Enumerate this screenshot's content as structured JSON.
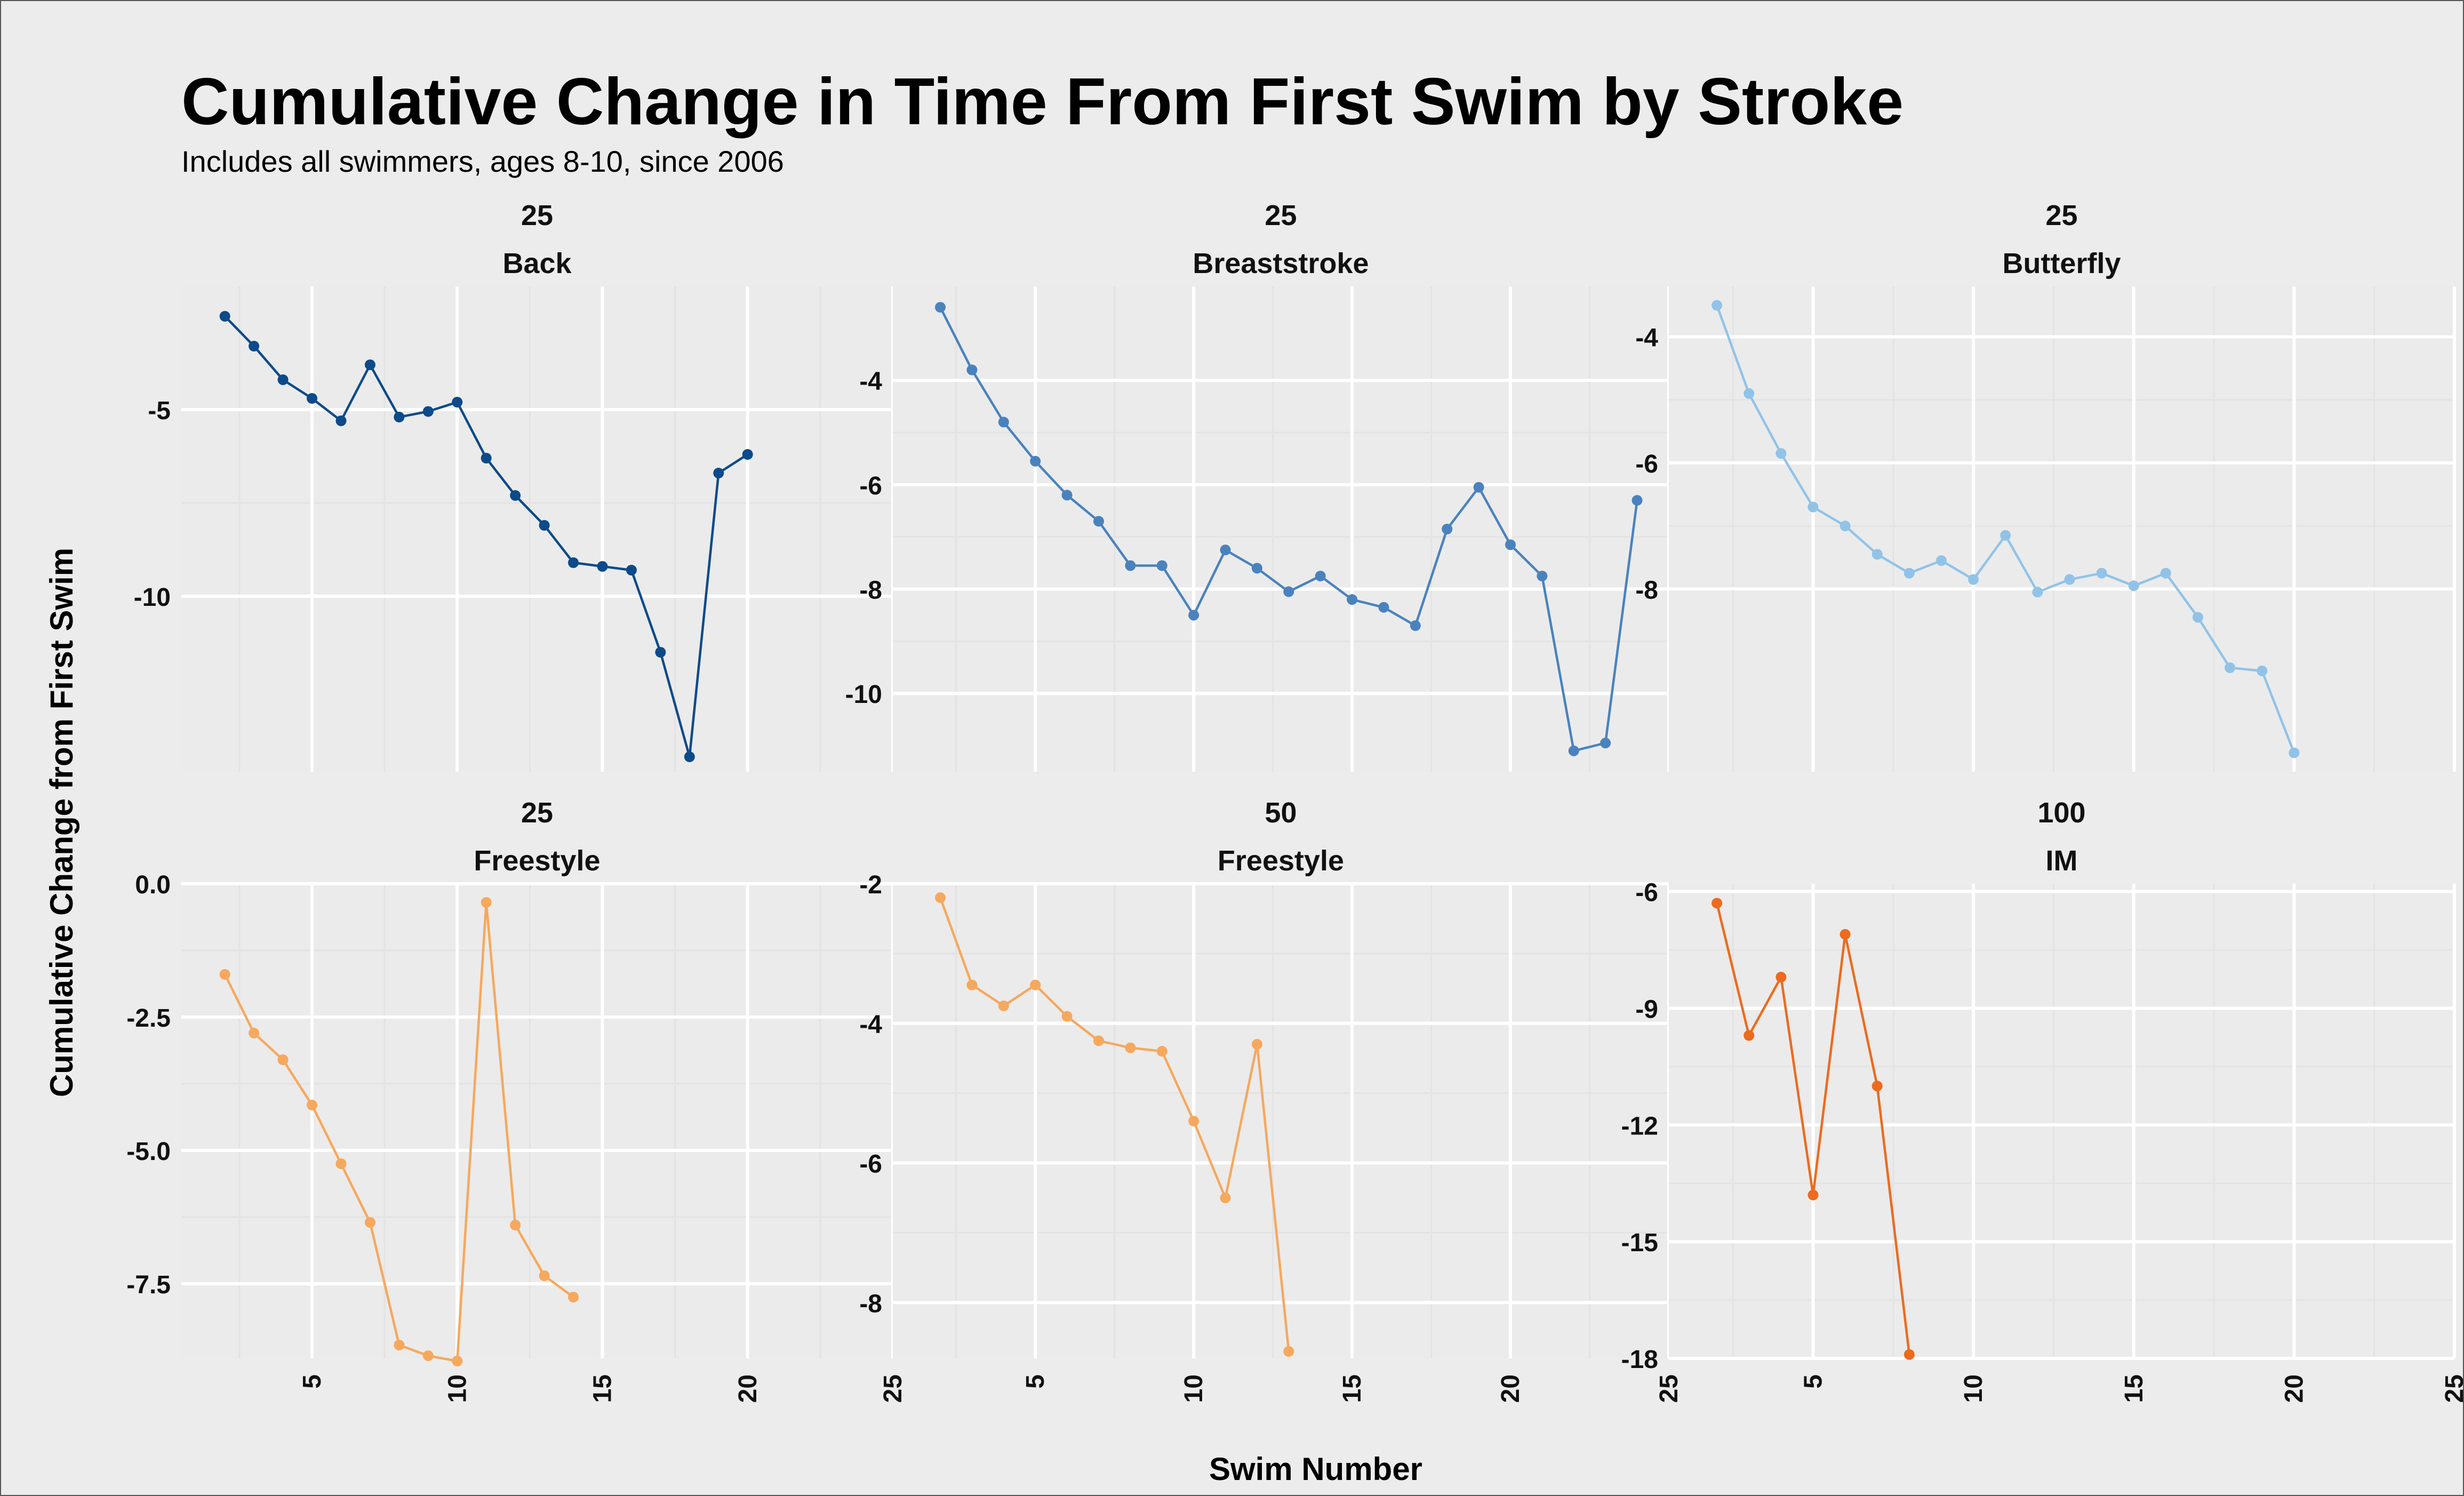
{
  "chart_data": {
    "type": "line",
    "title": "Cumulative Change in Time From First Swim by Stroke",
    "subtitle": "Includes all swimmers, ages 8-10, since 2006",
    "xlabel": "Swim Number",
    "ylabel": "Cumulative Change from First Swim",
    "grid": true,
    "legend": "none",
    "panels": [
      {
        "distance": "25",
        "stroke": "Back",
        "color": "#0d4a8a",
        "xlim": [
          1,
          25
        ],
        "xticks": [
          5,
          10,
          15,
          20,
          25
        ],
        "ylim": [
          -14.7,
          -1.7
        ],
        "yticks": [
          -5,
          -10
        ],
        "x": [
          2,
          3,
          4,
          5,
          6,
          7,
          8,
          9,
          10,
          11,
          12,
          13,
          14,
          15,
          16,
          17,
          18,
          19,
          20
        ],
        "y": [
          -2.5,
          -3.3,
          -4.2,
          -4.7,
          -5.3,
          -3.8,
          -5.2,
          -5.05,
          -4.8,
          -6.3,
          -7.3,
          -8.1,
          -9.1,
          -9.2,
          -9.3,
          -11.5,
          -14.3,
          -6.7,
          -6.2
        ]
      },
      {
        "distance": "25",
        "stroke": "Breaststroke",
        "color": "#4a82be",
        "xlim": [
          1,
          25
        ],
        "xticks": [
          5,
          10,
          15,
          20,
          25
        ],
        "ylim": [
          -11.5,
          -2.2
        ],
        "yticks": [
          -4,
          -6,
          -8,
          -10
        ],
        "x": [
          2,
          3,
          4,
          5,
          6,
          7,
          8,
          9,
          10,
          11,
          12,
          13,
          14,
          15,
          16,
          17,
          18,
          19,
          20,
          21,
          22,
          23,
          24
        ],
        "y": [
          -2.6,
          -3.8,
          -4.8,
          -5.55,
          -6.2,
          -6.7,
          -7.55,
          -7.55,
          -8.5,
          -7.25,
          -7.6,
          -8.05,
          -7.75,
          -8.2,
          -8.35,
          -8.7,
          -6.85,
          -6.05,
          -7.15,
          -7.75,
          -11.1,
          -10.95,
          -6.3
        ]
      },
      {
        "distance": "25",
        "stroke": "Butterfly",
        "color": "#91c3e8",
        "xlim": [
          1,
          25
        ],
        "xticks": [
          5,
          10,
          15,
          20,
          25
        ],
        "ylim": [
          -10.9,
          -3.2
        ],
        "yticks": [
          -4,
          -6,
          -8
        ],
        "x": [
          2,
          3,
          4,
          5,
          6,
          7,
          8,
          9,
          10,
          11,
          12,
          13,
          14,
          15,
          16,
          17,
          18,
          19,
          20
        ],
        "y": [
          -3.5,
          -4.9,
          -5.85,
          -6.7,
          -7.0,
          -7.45,
          -7.75,
          -7.55,
          -7.85,
          -7.15,
          -8.05,
          -7.85,
          -7.75,
          -7.95,
          -7.75,
          -8.45,
          -9.25,
          -9.3,
          -10.6
        ]
      },
      {
        "distance": "25",
        "stroke": "Freestyle",
        "color": "#f6a85d",
        "xlim": [
          1,
          25
        ],
        "xticks": [
          5,
          10,
          15,
          20,
          25
        ],
        "ylim": [
          -8.9,
          0.0
        ],
        "yticks": [
          0.0,
          -2.5,
          -5.0,
          -7.5
        ],
        "ytick_labels": [
          "0.0",
          "-2.5",
          "-5.0",
          "-7.5"
        ],
        "x": [
          2,
          3,
          4,
          5,
          6,
          7,
          8,
          9,
          10,
          11,
          12,
          13,
          14
        ],
        "y": [
          -1.7,
          -2.8,
          -3.3,
          -4.15,
          -5.25,
          -6.35,
          -8.65,
          -8.85,
          -8.95,
          -0.35,
          -6.4,
          -7.35,
          -7.75
        ]
      },
      {
        "distance": "50",
        "stroke": "Freestyle",
        "color": "#f6a85d",
        "xlim": [
          1,
          25
        ],
        "xticks": [
          5,
          10,
          15,
          20,
          25
        ],
        "ylim": [
          -8.8,
          -2.0
        ],
        "yticks": [
          -2,
          -4,
          -6,
          -8
        ],
        "x": [
          2,
          3,
          4,
          5,
          6,
          7,
          8,
          9,
          10,
          11,
          12,
          13
        ],
        "y": [
          -2.2,
          -3.45,
          -3.75,
          -3.45,
          -3.9,
          -4.25,
          -4.35,
          -4.4,
          -5.4,
          -6.5,
          -4.3,
          -8.7
        ]
      },
      {
        "distance": "100",
        "stroke": "IM",
        "color": "#ec6b1e",
        "xlim": [
          1,
          25
        ],
        "xticks": [
          5,
          10,
          15,
          20,
          25
        ],
        "ylim": [
          -18.0,
          -5.8
        ],
        "yticks": [
          -6,
          -9,
          -12,
          -15,
          -18
        ],
        "x": [
          2,
          3,
          4,
          5,
          6,
          7,
          8
        ],
        "y": [
          -6.3,
          -9.7,
          -8.2,
          -13.8,
          -7.1,
          -11.0,
          -17.9
        ]
      }
    ]
  }
}
